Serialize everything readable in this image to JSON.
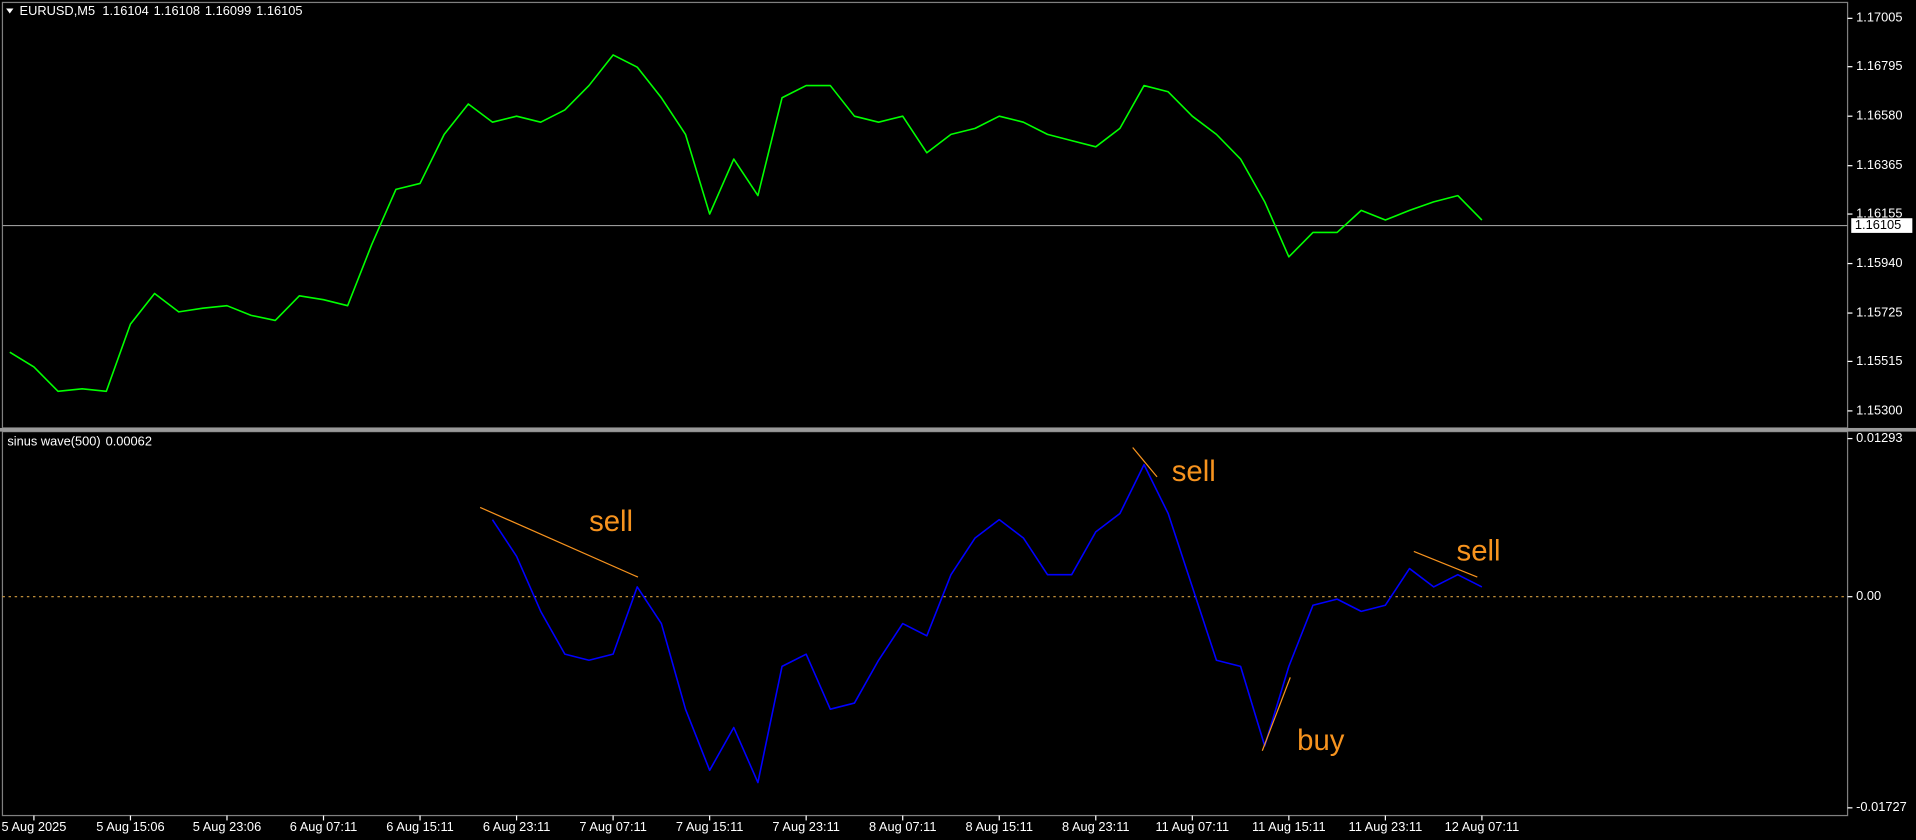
{
  "chart_data": [
    {
      "type": "line",
      "title": "EURUSD,M5",
      "ohlc": [
        1.16104,
        1.16108,
        1.16099,
        1.16105
      ],
      "categories": [
        null,
        "5 Aug 2025",
        null,
        null,
        null,
        "5 Aug 15:06",
        null,
        null,
        null,
        "5 Aug 23:06",
        null,
        null,
        null,
        "6 Aug 07:11",
        null,
        null,
        null,
        "6 Aug 15:11",
        null,
        null,
        null,
        "6 Aug 23:11",
        null,
        null,
        null,
        "7 Aug 07:11",
        null,
        null,
        null,
        "7 Aug 15:11",
        null,
        null,
        null,
        "7 Aug 23:11",
        null,
        null,
        null,
        "8 Aug 07:11",
        null,
        null,
        null,
        "8 Aug 15:11",
        null,
        null,
        null,
        "8 Aug 23:11",
        null,
        null,
        null,
        "11 Aug 07:11",
        null,
        null,
        null,
        "11 Aug 15:11",
        null,
        null,
        null,
        "11 Aug 23:11",
        null,
        null,
        null,
        "12 Aug 07:11"
      ],
      "series": [
        {
          "name": "EURUSD,M5",
          "color": "#00ff00",
          "values": [
            1.15555,
            1.15491,
            1.15385,
            1.15396,
            1.15385,
            1.15677,
            1.1581,
            1.1573,
            1.15746,
            1.15757,
            1.15715,
            1.15693,
            1.158,
            1.15783,
            1.15757,
            1.16023,
            1.16262,
            1.16288,
            1.16501,
            1.16633,
            1.16554,
            1.1658,
            1.16554,
            1.16607,
            1.16713,
            1.16846,
            1.16793,
            1.1666,
            1.16501,
            1.16155,
            1.16394,
            1.16235,
            1.1666,
            1.16713,
            1.16713,
            1.1658,
            1.16554,
            1.1658,
            1.16421,
            1.16501,
            1.16527,
            1.1658,
            1.16554,
            1.16501,
            1.16474,
            1.16447,
            1.16527,
            1.16713,
            1.16686,
            1.1658,
            1.16501,
            1.16394,
            1.16208,
            1.15969,
            1.16075,
            1.16075,
            1.16171,
            1.16129,
            1.16171,
            1.16208,
            1.16235,
            1.16129
          ]
        }
      ],
      "ylim": [
        1.15226,
        1.17074
      ],
      "yticks": [
        1.17005,
        1.16795,
        {
          "value": 1.1658,
          "label": "1.16580"
        },
        1.16365,
        1.16155,
        {
          "value": 1.1594,
          "label": "1.15940"
        },
        1.15725,
        1.15515,
        {
          "value": 1.153,
          "label": "1.15300"
        }
      ]
    },
    {
      "type": "line",
      "title": "sinus wave(500)",
      "indicator_value": 0.00062,
      "series": [
        {
          "name": "sinus wave(500)",
          "color": "#0000ff",
          "values": [
            null,
            null,
            null,
            null,
            null,
            null,
            null,
            null,
            null,
            null,
            null,
            null,
            null,
            null,
            null,
            null,
            null,
            null,
            null,
            null,
            0.0063,
            0.0033,
            -0.0012,
            -0.0047,
            -0.0052,
            -0.0047,
            0.0008,
            -0.0022,
            -0.0092,
            -0.0142,
            -0.0107,
            -0.0152,
            -0.0057,
            -0.0047,
            -0.0092,
            -0.0087,
            -0.0052,
            -0.0022,
            -0.0032,
            0.0018,
            0.0048,
            0.0063,
            0.0048,
            0.0018,
            0.0018,
            0.0053,
            0.0068,
            0.0108,
            0.0068,
            0.0008,
            -0.0052,
            -0.0057,
            -0.0122,
            -0.0057,
            -0.0007,
            -0.0002,
            -0.0012,
            -0.0007,
            0.0023,
            0.0008,
            0.0018,
            0.0008
          ]
        }
      ],
      "ylim": [
        -0.0179,
        0.0135
      ],
      "yticks": [
        0.01293,
        {
          "value": 0,
          "label": "0.00"
        },
        -0.01727
      ],
      "hline": 0,
      "hline_color": "#d8a040",
      "annotations": [
        {
          "text": "sell",
          "color": "#f7931e",
          "x": [
            19.49,
            26.03
          ],
          "y": [
            0.0073,
            0.0016
          ]
        },
        {
          "text": "sell",
          "color": "#f7931e",
          "x": [
            46.53,
            47.54
          ],
          "y": [
            0.0122,
            0.0098
          ]
        },
        {
          "text": "buy",
          "color": "#f7931e",
          "x": [
            51.9,
            53.06
          ],
          "y": [
            -0.0126,
            -0.0066
          ]
        },
        {
          "text": "sell",
          "color": "#f7931e",
          "x": [
            58.18,
            60.81
          ],
          "y": [
            0.0037,
            0.0016
          ]
        }
      ]
    }
  ]
}
